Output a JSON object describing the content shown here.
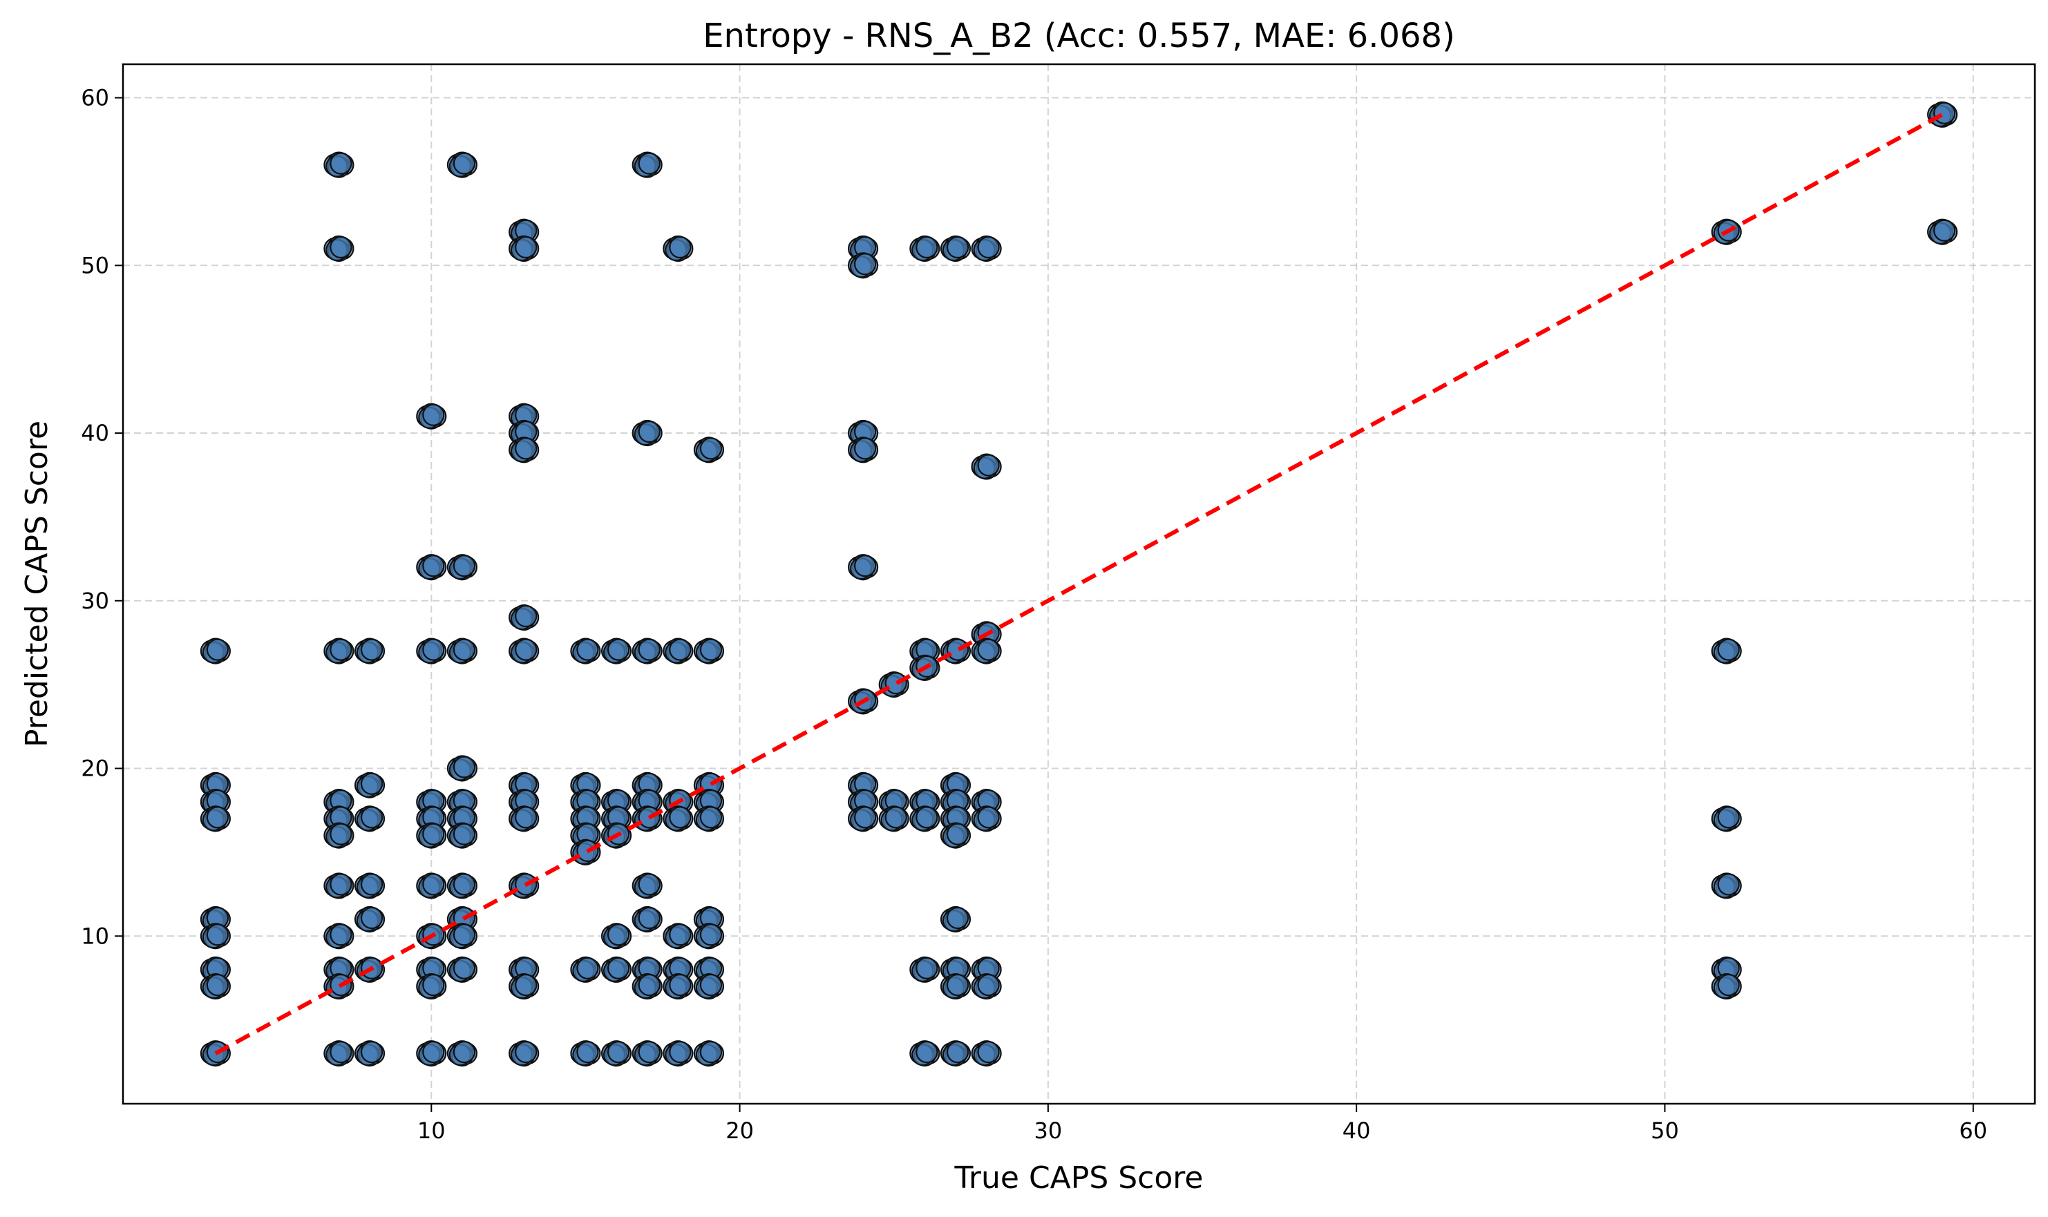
{
  "chart_data": {
    "type": "scatter",
    "title": "Entropy - RNS_A_B2 (Acc: 0.557, MAE: 6.068)",
    "xlabel": "True CAPS Score",
    "ylabel": "Predicted CAPS Score",
    "xlim": [
      0,
      62
    ],
    "ylim": [
      0,
      62
    ],
    "xticks": [
      10,
      20,
      30,
      40,
      50,
      60
    ],
    "yticks": [
      10,
      20,
      30,
      40,
      50,
      60
    ],
    "xtick_labels": [
      "10",
      "20",
      "30",
      "40",
      "50",
      "60"
    ],
    "ytick_labels": [
      "10",
      "20",
      "30",
      "40",
      "50",
      "60"
    ],
    "grid": true,
    "point_color": "#4a7fb5",
    "point_edge_color": "#111111",
    "reference_line": {
      "style": "dashed",
      "color": "#ff0000",
      "from": [
        3,
        3
      ],
      "to": [
        59,
        59
      ]
    },
    "points": [
      [
        3,
        27
      ],
      [
        3,
        19
      ],
      [
        3,
        18
      ],
      [
        3,
        17
      ],
      [
        3,
        11
      ],
      [
        3,
        10
      ],
      [
        3,
        8
      ],
      [
        3,
        7
      ],
      [
        3,
        3
      ],
      [
        7,
        56
      ],
      [
        7,
        51
      ],
      [
        7,
        27
      ],
      [
        7,
        18
      ],
      [
        7,
        17
      ],
      [
        7,
        16
      ],
      [
        7,
        13
      ],
      [
        7,
        10
      ],
      [
        7,
        8
      ],
      [
        7,
        7
      ],
      [
        7,
        3
      ],
      [
        8,
        27
      ],
      [
        8,
        19
      ],
      [
        8,
        17
      ],
      [
        8,
        13
      ],
      [
        8,
        11
      ],
      [
        8,
        8
      ],
      [
        8,
        3
      ],
      [
        10,
        41
      ],
      [
        10,
        32
      ],
      [
        10,
        27
      ],
      [
        10,
        18
      ],
      [
        10,
        17
      ],
      [
        10,
        16
      ],
      [
        10,
        13
      ],
      [
        10,
        10
      ],
      [
        10,
        8
      ],
      [
        10,
        7
      ],
      [
        10,
        3
      ],
      [
        11,
        56
      ],
      [
        11,
        32
      ],
      [
        11,
        27
      ],
      [
        11,
        20
      ],
      [
        11,
        18
      ],
      [
        11,
        17
      ],
      [
        11,
        16
      ],
      [
        11,
        13
      ],
      [
        11,
        11
      ],
      [
        11,
        10
      ],
      [
        11,
        8
      ],
      [
        11,
        3
      ],
      [
        13,
        52
      ],
      [
        13,
        51
      ],
      [
        13,
        41
      ],
      [
        13,
        40
      ],
      [
        13,
        39
      ],
      [
        13,
        29
      ],
      [
        13,
        27
      ],
      [
        13,
        19
      ],
      [
        13,
        18
      ],
      [
        13,
        17
      ],
      [
        13,
        13
      ],
      [
        13,
        8
      ],
      [
        13,
        7
      ],
      [
        13,
        3
      ],
      [
        15,
        27
      ],
      [
        15,
        19
      ],
      [
        15,
        18
      ],
      [
        15,
        17
      ],
      [
        15,
        16
      ],
      [
        15,
        15
      ],
      [
        15,
        8
      ],
      [
        15,
        3
      ],
      [
        16,
        27
      ],
      [
        16,
        18
      ],
      [
        16,
        17
      ],
      [
        16,
        16
      ],
      [
        16,
        10
      ],
      [
        16,
        8
      ],
      [
        16,
        3
      ],
      [
        17,
        56
      ],
      [
        17,
        40
      ],
      [
        17,
        27
      ],
      [
        17,
        19
      ],
      [
        17,
        18
      ],
      [
        17,
        17
      ],
      [
        17,
        13
      ],
      [
        17,
        11
      ],
      [
        17,
        8
      ],
      [
        17,
        7
      ],
      [
        17,
        3
      ],
      [
        18,
        51
      ],
      [
        18,
        27
      ],
      [
        18,
        18
      ],
      [
        18,
        17
      ],
      [
        18,
        10
      ],
      [
        18,
        8
      ],
      [
        18,
        7
      ],
      [
        18,
        3
      ],
      [
        19,
        39
      ],
      [
        19,
        27
      ],
      [
        19,
        19
      ],
      [
        19,
        18
      ],
      [
        19,
        17
      ],
      [
        19,
        11
      ],
      [
        19,
        10
      ],
      [
        19,
        8
      ],
      [
        19,
        7
      ],
      [
        19,
        3
      ],
      [
        24,
        51
      ],
      [
        24,
        50
      ],
      [
        24,
        40
      ],
      [
        24,
        39
      ],
      [
        24,
        32
      ],
      [
        24,
        24
      ],
      [
        24,
        19
      ],
      [
        24,
        18
      ],
      [
        24,
        17
      ],
      [
        25,
        25
      ],
      [
        25,
        18
      ],
      [
        25,
        17
      ],
      [
        26,
        51
      ],
      [
        26,
        27
      ],
      [
        26,
        26
      ],
      [
        26,
        18
      ],
      [
        26,
        17
      ],
      [
        26,
        8
      ],
      [
        26,
        3
      ],
      [
        27,
        51
      ],
      [
        27,
        27
      ],
      [
        27,
        19
      ],
      [
        27,
        18
      ],
      [
        27,
        17
      ],
      [
        27,
        16
      ],
      [
        27,
        11
      ],
      [
        27,
        8
      ],
      [
        27,
        7
      ],
      [
        27,
        3
      ],
      [
        28,
        51
      ],
      [
        28,
        38
      ],
      [
        28,
        28
      ],
      [
        28,
        27
      ],
      [
        28,
        18
      ],
      [
        28,
        17
      ],
      [
        28,
        8
      ],
      [
        28,
        7
      ],
      [
        28,
        3
      ],
      [
        52,
        52
      ],
      [
        52,
        27
      ],
      [
        52,
        17
      ],
      [
        52,
        13
      ],
      [
        52,
        8
      ],
      [
        52,
        7
      ],
      [
        59,
        59
      ],
      [
        59,
        52
      ]
    ]
  }
}
